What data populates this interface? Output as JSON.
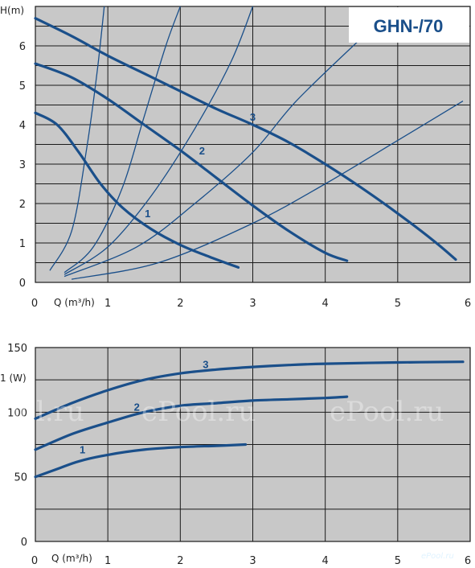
{
  "chart_data": [
    {
      "type": "line",
      "title": "GHN-/70",
      "xlabel": "Q (m³/h)",
      "ylabel": "H(m)",
      "xlim": [
        0,
        6
      ],
      "ylim": [
        0,
        7
      ],
      "xticks": [
        "0",
        "1",
        "2",
        "3",
        "4",
        "5",
        "6"
      ],
      "yticks": [
        "0",
        "1",
        "2",
        "3",
        "4",
        "5",
        "6"
      ],
      "grid": true,
      "series": [
        {
          "name": "1",
          "points": [
            [
              0,
              4.3
            ],
            [
              0.3,
              4.0
            ],
            [
              0.6,
              3.3
            ],
            [
              0.9,
              2.5
            ],
            [
              1.2,
              1.9
            ],
            [
              1.6,
              1.35
            ],
            [
              2.0,
              0.95
            ],
            [
              2.4,
              0.65
            ],
            [
              2.8,
              0.38
            ]
          ]
        },
        {
          "name": "2",
          "points": [
            [
              0,
              5.55
            ],
            [
              0.5,
              5.2
            ],
            [
              1.0,
              4.65
            ],
            [
              1.5,
              4.0
            ],
            [
              2.0,
              3.35
            ],
            [
              2.5,
              2.65
            ],
            [
              3.0,
              1.95
            ],
            [
              3.5,
              1.3
            ],
            [
              4.0,
              0.75
            ],
            [
              4.3,
              0.55
            ]
          ]
        },
        {
          "name": "3",
          "points": [
            [
              0,
              6.7
            ],
            [
              0.5,
              6.25
            ],
            [
              1.0,
              5.75
            ],
            [
              1.5,
              5.3
            ],
            [
              2.0,
              4.85
            ],
            [
              2.5,
              4.4
            ],
            [
              3.0,
              4.0
            ],
            [
              3.5,
              3.55
            ],
            [
              4.0,
              3.0
            ],
            [
              4.5,
              2.4
            ],
            [
              5.0,
              1.75
            ],
            [
              5.5,
              1.05
            ],
            [
              5.8,
              0.58
            ]
          ]
        }
      ],
      "system_curves": [
        [
          [
            0.2,
            0.3
          ],
          [
            0.5,
            1.3
          ],
          [
            0.7,
            3.3
          ],
          [
            0.85,
            5.3
          ],
          [
            0.95,
            7.0
          ]
        ],
        [
          [
            0.4,
            0.25
          ],
          [
            0.8,
            0.9
          ],
          [
            1.2,
            2.4
          ],
          [
            1.5,
            4.2
          ],
          [
            1.8,
            6.0
          ],
          [
            2.0,
            7.0
          ]
        ],
        [
          [
            0.4,
            0.2
          ],
          [
            1.0,
            0.9
          ],
          [
            1.6,
            2.2
          ],
          [
            2.2,
            3.9
          ],
          [
            2.7,
            5.6
          ],
          [
            3.0,
            7.0
          ]
        ],
        [
          [
            0.4,
            0.15
          ],
          [
            1.4,
            0.9
          ],
          [
            2.2,
            2.0
          ],
          [
            3.0,
            3.3
          ],
          [
            3.6,
            4.6
          ],
          [
            4.5,
            6.2
          ]
        ],
        [
          [
            0.5,
            0.08
          ],
          [
            1.7,
            0.5
          ],
          [
            3.0,
            1.5
          ],
          [
            4.0,
            2.5
          ],
          [
            5.0,
            3.6
          ],
          [
            5.9,
            4.6
          ]
        ]
      ]
    },
    {
      "type": "line",
      "xlabel": "Q (m³/h)",
      "ylabel": "1 (W)",
      "xlim": [
        0,
        6
      ],
      "ylim": [
        0,
        150
      ],
      "xticks": [
        "0",
        "1",
        "2",
        "3",
        "4",
        "5",
        "6"
      ],
      "yticks": [
        "0",
        "50",
        "100",
        "150"
      ],
      "grid": true,
      "series": [
        {
          "name": "1",
          "points": [
            [
              0,
              50
            ],
            [
              0.3,
              56
            ],
            [
              0.6,
              62
            ],
            [
              1.0,
              67
            ],
            [
              1.5,
              71
            ],
            [
              2.0,
              73
            ],
            [
              2.5,
              74
            ],
            [
              2.9,
              75
            ]
          ]
        },
        {
          "name": "2",
          "points": [
            [
              0,
              71
            ],
            [
              0.5,
              83
            ],
            [
              1.0,
              92
            ],
            [
              1.5,
              100
            ],
            [
              2.0,
              105
            ],
            [
              2.5,
              107
            ],
            [
              3.0,
              109
            ],
            [
              3.5,
              110
            ],
            [
              4.0,
              111
            ],
            [
              4.3,
              112
            ]
          ]
        },
        {
          "name": "3",
          "points": [
            [
              0,
              95
            ],
            [
              0.5,
              107
            ],
            [
              1.0,
              117
            ],
            [
              1.5,
              125
            ],
            [
              2.0,
              130
            ],
            [
              2.5,
              133
            ],
            [
              3.0,
              135
            ],
            [
              3.5,
              136.5
            ],
            [
              4.0,
              137.5
            ],
            [
              5.0,
              138.5
            ],
            [
              5.9,
              139
            ]
          ]
        }
      ]
    }
  ],
  "watermark": {
    "texts": [
      "ool.ru",
      "ePool.ru",
      "ePool.ru"
    ],
    "brand": "ePool.ru"
  },
  "colors": {
    "plot_bg": "#c8c8c8",
    "grid": "#1a1a1a",
    "curve": "#1a4f8a"
  }
}
